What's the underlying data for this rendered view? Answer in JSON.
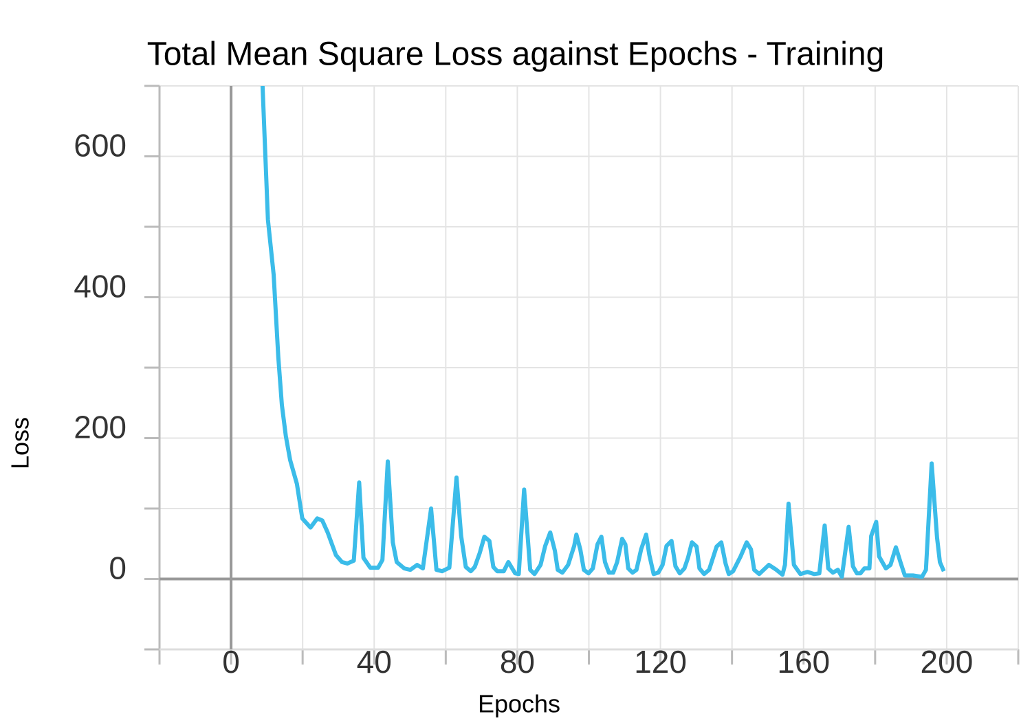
{
  "chart_data": {
    "type": "line",
    "title": "Total Mean Square Loss against Epochs - Training",
    "x_label": "Epochs",
    "y_label": "Loss",
    "xlim": [
      -20,
      220
    ],
    "ylim": [
      -100,
      700
    ],
    "xticks": [
      0,
      40,
      80,
      120,
      160,
      200
    ],
    "x_minor_ticks": [
      -20,
      20,
      60,
      100,
      140,
      180,
      220
    ],
    "yticks": [
      0,
      200,
      400,
      600
    ],
    "y_minor_ticks": [
      -100,
      100,
      300,
      500,
      700
    ],
    "grid": true,
    "zero_lines": true,
    "series": [
      {
        "color": "#3bbce9",
        "x": [
          8.8,
          10.3,
          11.9,
          13.2,
          14.2,
          15.3,
          16.5,
          18.4,
          19.9,
          22.2,
          24.1,
          25.5,
          27,
          29.3,
          31,
          32.5,
          34.3,
          35.8,
          37,
          38.9,
          41.1,
          42.3,
          43.8,
          45.2,
          46.3,
          48.4,
          50.1,
          52,
          53.6,
          55.9,
          57.4,
          59,
          61,
          63,
          64.3,
          65.6,
          67,
          68.1,
          69.5,
          70.8,
          72.2,
          73.3,
          74.4,
          76.2,
          77.5,
          79.4,
          80.4,
          81.9,
          83.6,
          84.8,
          86.5,
          87.8,
          89.2,
          90.5,
          91.3,
          92.6,
          94.2,
          95.9,
          96.5,
          97.6,
          98.6,
          99.9,
          101.1,
          102.4,
          103.5,
          104.5,
          105.6,
          106.8,
          107.9,
          109.3,
          110.2,
          111,
          112.2,
          113.3,
          114.6,
          116,
          116.9,
          118.1,
          119.4,
          120.6,
          121.7,
          123.1,
          124.2,
          125.4,
          126.7,
          127.7,
          128.8,
          130.1,
          130.9,
          132.2,
          133.6,
          135.7,
          137,
          138.2,
          139.1,
          140.3,
          142.4,
          144.1,
          145.3,
          146.2,
          147.6,
          150.3,
          152.4,
          154.1,
          154.8,
          155.8,
          157.3,
          159.1,
          161.1,
          163,
          164.4,
          165.9,
          166.9,
          168.2,
          169.6,
          170.7,
          172.6,
          173.8,
          174.9,
          175.9,
          177,
          178.4,
          178.9,
          180.3,
          181.1,
          183,
          184.3,
          185.8,
          187.2,
          188.3,
          190.6,
          193.1,
          194.2,
          195.8,
          197.3,
          198.1,
          199.2
        ],
        "values": [
          700,
          510,
          432,
          315,
          247,
          203,
          169,
          135,
          86,
          73,
          86,
          83,
          66,
          34,
          24,
          22,
          26,
          137,
          30,
          16,
          16,
          27,
          167,
          52,
          24,
          15,
          13,
          20,
          15,
          100,
          13,
          11,
          16,
          144,
          61,
          17,
          11,
          17,
          37,
          60,
          54,
          17,
          11,
          11,
          24,
          8,
          7,
          127,
          13,
          7,
          20,
          47,
          66,
          40,
          13,
          9,
          20,
          47,
          63,
          42,
          13,
          8,
          15,
          49,
          60,
          24,
          9,
          9,
          24,
          57,
          49,
          15,
          9,
          13,
          42,
          63,
          34,
          7,
          9,
          20,
          47,
          54,
          18,
          8,
          15,
          30,
          52,
          46,
          15,
          7,
          13,
          46,
          52,
          22,
          7,
          11,
          32,
          52,
          42,
          13,
          7,
          20,
          13,
          6,
          20,
          107,
          20,
          7,
          10,
          7,
          8,
          76,
          15,
          9,
          13,
          3,
          74,
          18,
          8,
          8,
          15,
          15,
          61,
          81,
          32,
          15,
          20,
          45,
          22,
          5,
          5,
          3,
          13,
          164,
          59,
          24,
          11
        ]
      }
    ]
  }
}
